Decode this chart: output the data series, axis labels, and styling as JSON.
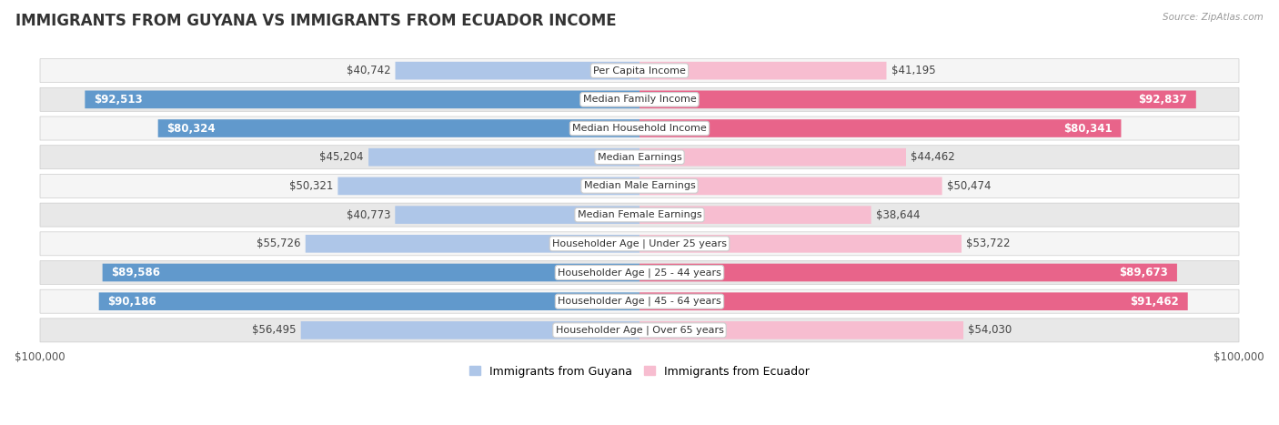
{
  "title": "IMMIGRANTS FROM GUYANA VS IMMIGRANTS FROM ECUADOR INCOME",
  "source": "Source: ZipAtlas.com",
  "categories": [
    "Per Capita Income",
    "Median Family Income",
    "Median Household Income",
    "Median Earnings",
    "Median Male Earnings",
    "Median Female Earnings",
    "Householder Age | Under 25 years",
    "Householder Age | 25 - 44 years",
    "Householder Age | 45 - 64 years",
    "Householder Age | Over 65 years"
  ],
  "guyana_values": [
    40742,
    92513,
    80324,
    45204,
    50321,
    40773,
    55726,
    89586,
    90186,
    56495
  ],
  "ecuador_values": [
    41195,
    92837,
    80341,
    44462,
    50474,
    38644,
    53722,
    89673,
    91462,
    54030
  ],
  "guyana_labels": [
    "$40,742",
    "$92,513",
    "$80,324",
    "$45,204",
    "$50,321",
    "$40,773",
    "$55,726",
    "$89,586",
    "$90,186",
    "$56,495"
  ],
  "ecuador_labels": [
    "$41,195",
    "$92,837",
    "$80,341",
    "$44,462",
    "$50,474",
    "$38,644",
    "$53,722",
    "$89,673",
    "$91,462",
    "$54,030"
  ],
  "max_value": 100000,
  "guyana_color_light": "#aec6e8",
  "guyana_color_dark": "#6199cc",
  "ecuador_color_light": "#f7bdd0",
  "ecuador_color_dark": "#e8648a",
  "guyana_legend": "Immigrants from Guyana",
  "ecuador_legend": "Immigrants from Ecuador",
  "background_color": "#ffffff",
  "row_bg_odd": "#f5f5f5",
  "row_bg_even": "#e8e8e8",
  "xlim": 100000,
  "bar_height": 0.62,
  "label_fontsize": 8.5,
  "title_fontsize": 12,
  "category_fontsize": 8,
  "dark_threshold": 70000
}
